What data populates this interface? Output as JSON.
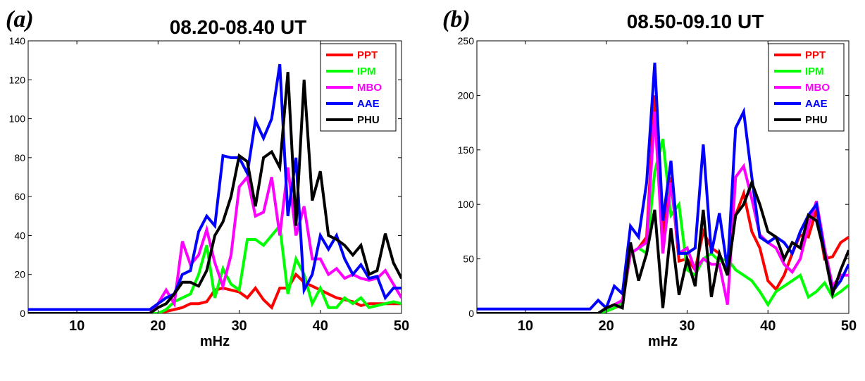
{
  "chart_data": [
    {
      "type": "line",
      "panel_label": "(a)",
      "title": "08.20-08.40 UT",
      "xlabel": "mHz",
      "ylabel": "",
      "xlim": [
        4,
        50
      ],
      "ylim": [
        0,
        140
      ],
      "xticks": [
        10,
        20,
        30,
        40,
        50
      ],
      "yticks": [
        0,
        20,
        40,
        60,
        80,
        100,
        120,
        140
      ],
      "grid": false,
      "legend": "top-right",
      "x": [
        4,
        5,
        6,
        7,
        8,
        9,
        10,
        11,
        12,
        13,
        14,
        15,
        16,
        17,
        18,
        19,
        20,
        21,
        22,
        23,
        24,
        25,
        26,
        27,
        28,
        29,
        30,
        31,
        32,
        33,
        34,
        35,
        36,
        37,
        38,
        39,
        40,
        41,
        42,
        43,
        44,
        45,
        46,
        47,
        48,
        49,
        50
      ],
      "series": [
        {
          "name": "PPT",
          "color": "#ff0000",
          "values": [
            0,
            0,
            0,
            0,
            0,
            0,
            0,
            0,
            0,
            0,
            0,
            0,
            0,
            0,
            0,
            0,
            0,
            1,
            2,
            3,
            5,
            5,
            6,
            12,
            13,
            12,
            11,
            8,
            13,
            7,
            3,
            13,
            13,
            20,
            16,
            14,
            12,
            10,
            8,
            7,
            6,
            4,
            5,
            5,
            5,
            5,
            5
          ]
        },
        {
          "name": "IPM",
          "color": "#00ff00",
          "values": [
            0,
            0,
            0,
            0,
            0,
            0,
            0,
            0,
            0,
            0,
            0,
            0,
            0,
            0,
            0,
            0,
            0,
            2,
            6,
            8,
            10,
            20,
            35,
            8,
            23,
            15,
            12,
            38,
            38,
            35,
            40,
            45,
            10,
            28,
            20,
            5,
            13,
            3,
            3,
            8,
            5,
            8,
            3,
            4,
            5,
            6,
            5
          ]
        },
        {
          "name": "MBO",
          "color": "#ff00ff",
          "values": [
            0,
            0,
            0,
            0,
            0,
            0,
            0,
            0,
            0,
            0,
            0,
            0,
            0,
            0,
            0,
            0,
            5,
            12,
            5,
            37,
            25,
            30,
            43,
            26,
            14,
            30,
            65,
            70,
            50,
            52,
            70,
            40,
            75,
            40,
            55,
            28,
            28,
            20,
            23,
            18,
            20,
            18,
            17,
            18,
            22,
            15,
            8
          ]
        },
        {
          "name": "AAE",
          "color": "#0000ff",
          "values": [
            2,
            2,
            2,
            2,
            2,
            2,
            2,
            2,
            2,
            2,
            2,
            2,
            2,
            2,
            2,
            2,
            5,
            8,
            10,
            20,
            22,
            42,
            50,
            45,
            81,
            80,
            80,
            72,
            99,
            90,
            100,
            128,
            50,
            80,
            12,
            20,
            40,
            33,
            40,
            28,
            20,
            25,
            18,
            19,
            8,
            13,
            13
          ]
        },
        {
          "name": "PHU",
          "color": "#000000",
          "values": [
            0,
            0,
            0,
            0,
            0,
            0,
            0,
            0,
            0,
            0,
            0,
            0,
            0,
            0,
            0,
            0,
            3,
            5,
            10,
            16,
            16,
            14,
            22,
            40,
            47,
            60,
            81,
            78,
            55,
            80,
            83,
            75,
            124,
            45,
            120,
            58,
            73,
            40,
            38,
            35,
            30,
            35,
            20,
            22,
            41,
            26,
            18
          ]
        }
      ]
    },
    {
      "type": "line",
      "panel_label": "(b)",
      "title": "08.50-09.10 UT",
      "xlabel": "mHz",
      "ylabel": "",
      "xlim": [
        4,
        50
      ],
      "ylim": [
        0,
        250
      ],
      "xticks": [
        10,
        20,
        30,
        40,
        50
      ],
      "yticks": [
        0,
        50,
        100,
        150,
        200,
        250
      ],
      "grid": false,
      "legend": "top-right",
      "x": [
        4,
        5,
        6,
        7,
        8,
        9,
        10,
        11,
        12,
        13,
        14,
        15,
        16,
        17,
        18,
        19,
        20,
        21,
        22,
        23,
        24,
        25,
        26,
        27,
        28,
        29,
        30,
        31,
        32,
        33,
        34,
        35,
        36,
        37,
        38,
        39,
        40,
        41,
        42,
        43,
        44,
        45,
        46,
        47,
        48,
        49,
        50
      ],
      "series": [
        {
          "name": "PPT",
          "color": "#ff0000",
          "values": [
            0,
            0,
            0,
            0,
            0,
            0,
            0,
            0,
            0,
            0,
            0,
            0,
            0,
            0,
            0,
            0,
            2,
            5,
            8,
            55,
            60,
            70,
            200,
            70,
            125,
            48,
            50,
            40,
            75,
            60,
            55,
            35,
            90,
            110,
            75,
            60,
            30,
            22,
            35,
            55,
            72,
            70,
            95,
            50,
            52,
            65,
            70
          ]
        },
        {
          "name": "IPM",
          "color": "#00ff00",
          "values": [
            0,
            0,
            0,
            0,
            0,
            0,
            0,
            0,
            0,
            0,
            0,
            0,
            0,
            0,
            0,
            0,
            2,
            5,
            10,
            55,
            60,
            55,
            130,
            160,
            90,
            100,
            40,
            35,
            50,
            55,
            48,
            50,
            40,
            35,
            30,
            20,
            8,
            20,
            25,
            30,
            35,
            15,
            20,
            28,
            15,
            20,
            26
          ]
        },
        {
          "name": "MBO",
          "color": "#ff00ff",
          "values": [
            0,
            0,
            0,
            0,
            0,
            0,
            0,
            0,
            0,
            0,
            0,
            0,
            0,
            0,
            0,
            0,
            5,
            8,
            12,
            55,
            60,
            65,
            185,
            55,
            120,
            55,
            60,
            40,
            50,
            45,
            45,
            8,
            125,
            135,
            105,
            72,
            65,
            60,
            45,
            38,
            50,
            80,
            103,
            60,
            25,
            35,
            35
          ]
        },
        {
          "name": "AAE",
          "color": "#0000ff",
          "values": [
            4,
            4,
            4,
            4,
            4,
            4,
            4,
            4,
            4,
            4,
            4,
            4,
            4,
            4,
            4,
            12,
            5,
            25,
            18,
            80,
            70,
            120,
            230,
            85,
            140,
            55,
            55,
            60,
            155,
            55,
            92,
            40,
            170,
            185,
            125,
            70,
            65,
            70,
            65,
            55,
            75,
            90,
            100,
            55,
            20,
            30,
            45
          ]
        },
        {
          "name": "PHU",
          "color": "#000000",
          "values": [
            0,
            0,
            0,
            0,
            0,
            0,
            0,
            0,
            0,
            0,
            0,
            0,
            0,
            0,
            0,
            0,
            5,
            8,
            5,
            65,
            30,
            55,
            95,
            5,
            78,
            17,
            50,
            25,
            95,
            15,
            55,
            35,
            90,
            100,
            120,
            100,
            75,
            70,
            50,
            65,
            60,
            90,
            85,
            55,
            18,
            40,
            58
          ]
        }
      ]
    }
  ]
}
